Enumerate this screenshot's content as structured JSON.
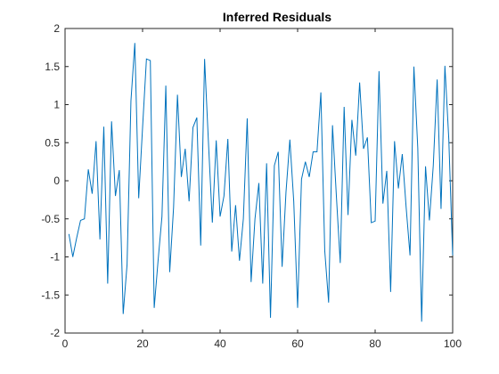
{
  "chart_data": {
    "type": "line",
    "title": "Inferred Residuals",
    "xlabel": "",
    "ylabel": "",
    "xlim": [
      0,
      100
    ],
    "ylim": [
      -2,
      2
    ],
    "xticks": [
      0,
      20,
      40,
      60,
      80,
      100
    ],
    "xtick_labels": [
      "0",
      "20",
      "40",
      "60",
      "80",
      "100"
    ],
    "yticks": [
      -2,
      -1.5,
      -1,
      -0.5,
      0,
      0.5,
      1,
      1.5,
      2
    ],
    "ytick_labels": [
      "-2",
      "-1.5",
      "-1",
      "-0.5",
      "0",
      "0.5",
      "1",
      "1.5",
      "2"
    ],
    "grid": false,
    "line_color": "#0072BD",
    "series": [
      {
        "x": [
          1,
          2,
          3,
          4,
          5,
          6,
          7,
          8,
          9,
          10,
          11,
          12,
          13,
          14,
          15,
          16,
          17,
          18,
          19,
          20,
          21,
          22,
          23,
          24,
          25,
          26,
          27,
          28,
          29,
          30,
          31,
          32,
          33,
          34,
          35,
          36,
          37,
          38,
          39,
          40,
          41,
          42,
          43,
          44,
          45,
          46,
          47,
          48,
          49,
          50,
          51,
          52,
          53,
          54,
          55,
          56,
          57,
          58,
          59,
          60,
          61,
          62,
          63,
          64,
          65,
          66,
          67,
          68,
          69,
          70,
          71,
          72,
          73,
          74,
          75,
          76,
          77,
          78,
          79,
          80,
          81,
          82,
          83,
          84,
          85,
          86,
          87,
          88,
          89,
          90,
          91,
          92,
          93,
          94,
          95,
          96,
          97,
          98,
          99,
          100
        ],
        "values": [
          -0.7,
          -1.0,
          -0.75,
          -0.52,
          -0.5,
          0.15,
          -0.17,
          0.52,
          -0.77,
          0.71,
          -1.35,
          0.78,
          -0.2,
          0.14,
          -1.75,
          -1.1,
          1.05,
          1.81,
          -0.23,
          0.7,
          1.6,
          1.58,
          -1.67,
          -1.05,
          -0.47,
          1.25,
          -1.2,
          -0.35,
          1.13,
          0.05,
          0.42,
          -0.27,
          0.7,
          0.83,
          -0.85,
          1.6,
          0.5,
          -0.55,
          0.53,
          -0.47,
          -0.2,
          0.55,
          -0.93,
          -0.32,
          -1.05,
          -0.5,
          0.82,
          -1.33,
          -0.5,
          -0.03,
          -1.35,
          0.23,
          -1.8,
          0.2,
          0.38,
          -1.13,
          -0.15,
          0.54,
          -0.27,
          -1.67,
          0.02,
          0.25,
          0.05,
          0.38,
          0.38,
          1.16,
          -0.92,
          -1.6,
          0.73,
          -0.2,
          -1.08,
          0.97,
          -0.45,
          0.8,
          0.33,
          1.29,
          0.42,
          0.57,
          -0.55,
          -0.53,
          1.44,
          -0.3,
          0.13,
          -1.46,
          0.52,
          -0.1,
          0.35,
          -0.35,
          -0.98,
          1.5,
          0.43,
          -1.85,
          0.19,
          -0.52,
          0.2,
          1.33,
          -0.37,
          1.51,
          0.55,
          -0.98
        ]
      }
    ]
  }
}
